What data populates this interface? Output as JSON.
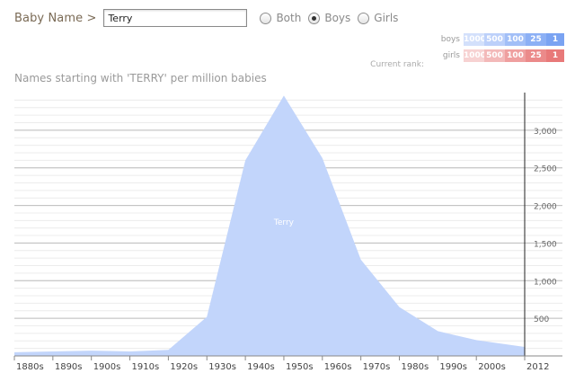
{
  "header": {
    "label": "Baby Name >",
    "name_value": "Terry",
    "radio_options": [
      {
        "label": "Both",
        "checked": false
      },
      {
        "label": "Boys",
        "checked": true
      },
      {
        "label": "Girls",
        "checked": false
      }
    ]
  },
  "rank_legend": {
    "boys_label": "boys",
    "girls_label": "girls",
    "ranks": [
      "1000",
      "500",
      "100",
      "25",
      "1"
    ],
    "boys_colors": [
      "#d3e0fb",
      "#bcd0fa",
      "#a2bff7",
      "#8cb0f5",
      "#7aa3f2"
    ],
    "girls_colors": [
      "#f7d2d2",
      "#f3b9b9",
      "#ef9f9f",
      "#eb8a8a",
      "#e87979"
    ],
    "current_rank_label": "Current rank:"
  },
  "chart_data": {
    "type": "area",
    "title": "Names starting with 'TERRY' per million babies",
    "x_labels": [
      "1880s",
      "1890s",
      "1900s",
      "1910s",
      "1920s",
      "1930s",
      "1940s",
      "1950s",
      "1960s",
      "1970s",
      "1980s",
      "1990s",
      "2000s",
      "2012"
    ],
    "series": [
      {
        "name": "Terry",
        "color": "#c2d5fb",
        "values": [
          50,
          60,
          70,
          60,
          80,
          520,
          2600,
          3460,
          2630,
          1280,
          650,
          330,
          210,
          120
        ]
      }
    ],
    "y_ticks": [
      "500",
      "1,000",
      "1,500",
      "2,000",
      "2,500",
      "3,000"
    ],
    "ylim": [
      0,
      3500
    ],
    "grid": true
  }
}
